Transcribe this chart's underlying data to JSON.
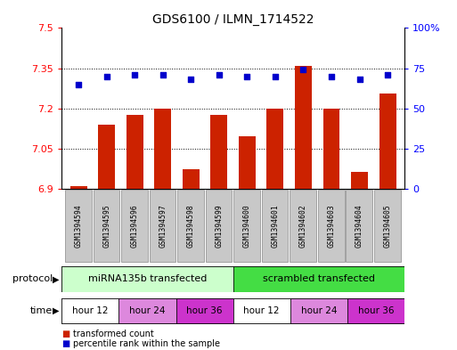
{
  "title": "GDS6100 / ILMN_1714522",
  "samples": [
    "GSM1394594",
    "GSM1394595",
    "GSM1394596",
    "GSM1394597",
    "GSM1394598",
    "GSM1394599",
    "GSM1394600",
    "GSM1394601",
    "GSM1394602",
    "GSM1394603",
    "GSM1394604",
    "GSM1394605"
  ],
  "bar_values": [
    6.91,
    7.14,
    7.175,
    7.2,
    6.975,
    7.175,
    7.095,
    7.2,
    7.36,
    7.2,
    6.965,
    7.255
  ],
  "scatter_values": [
    65,
    70,
    71,
    71,
    68,
    71,
    70,
    70,
    74,
    70,
    68,
    71
  ],
  "ymin": 6.9,
  "ymax": 7.5,
  "y2min": 0,
  "y2max": 100,
  "yticks": [
    6.9,
    7.05,
    7.2,
    7.35,
    7.5
  ],
  "y2ticks": [
    0,
    25,
    50,
    75,
    100
  ],
  "bar_color": "#cc2200",
  "scatter_color": "#0000cc",
  "bar_bottom": 6.9,
  "protocol_groups": [
    {
      "label": "miRNA135b transfected",
      "start": 0,
      "end": 6,
      "color": "#ccffcc"
    },
    {
      "label": "scrambled transfected",
      "start": 6,
      "end": 12,
      "color": "#44dd44"
    }
  ],
  "time_groups": [
    {
      "label": "hour 12",
      "start": 0,
      "end": 2,
      "color": "#ffffff"
    },
    {
      "label": "hour 24",
      "start": 2,
      "end": 4,
      "color": "#dd88dd"
    },
    {
      "label": "hour 36",
      "start": 4,
      "end": 6,
      "color": "#cc33cc"
    },
    {
      "label": "hour 12",
      "start": 6,
      "end": 8,
      "color": "#ffffff"
    },
    {
      "label": "hour 24",
      "start": 8,
      "end": 10,
      "color": "#dd88dd"
    },
    {
      "label": "hour 36",
      "start": 10,
      "end": 12,
      "color": "#cc33cc"
    }
  ],
  "protocol_label": "protocol",
  "time_label": "time",
  "legend_items": [
    {
      "label": "transformed count",
      "color": "#cc2200"
    },
    {
      "label": "percentile rank within the sample",
      "color": "#0000cc"
    }
  ],
  "sample_box_color": "#c8c8c8",
  "sample_box_edge": "#888888",
  "bg_color": "#ffffff"
}
